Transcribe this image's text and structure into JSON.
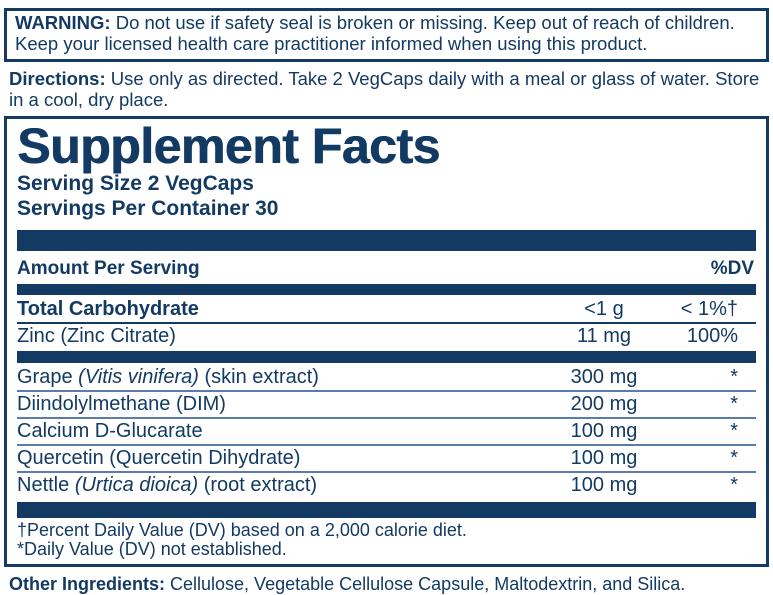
{
  "colors": {
    "navy": "#133A63",
    "light_rule": "#5B7CA8",
    "background": "#FFFFFF"
  },
  "warning": {
    "label": "WARNING:",
    "text": " Do not use if safety seal is broken or missing. Keep out of reach of children. Keep your licensed health care practitioner informed when using this product."
  },
  "directions": {
    "label": "Directions:",
    "text": " Use only as directed. Take 2 VegCaps daily with a meal or glass of water. Store in a cool, dry place."
  },
  "panel": {
    "title": "Supplement Facts",
    "serving_size": "Serving Size 2 VegCaps",
    "servings_per_container": "Servings Per Container 30",
    "header": {
      "amount": "Amount Per Serving",
      "dv": "%DV"
    },
    "nutrient_rows": [
      {
        "name": "Total Carbohydrate",
        "amount": "<1 g",
        "dv": "< 1%†"
      },
      {
        "name": "Zinc (Zinc Citrate)",
        "amount": "11 mg",
        "dv": "100%"
      }
    ],
    "ingredient_rows": [
      {
        "name_pre": "Grape ",
        "name_latin": "(Vitis vinifera)",
        "name_post": " (skin extract)",
        "amount": "300 mg",
        "dv": "*"
      },
      {
        "name_pre": "Diindolylmethane (DIM)",
        "name_latin": "",
        "name_post": "",
        "amount": "200 mg",
        "dv": "*"
      },
      {
        "name_pre": "Calcium D-Glucarate",
        "name_latin": "",
        "name_post": "",
        "amount": "100 mg",
        "dv": "*"
      },
      {
        "name_pre": "Quercetin (Quercetin Dihydrate)",
        "name_latin": "",
        "name_post": "",
        "amount": "100 mg",
        "dv": "*"
      },
      {
        "name_pre": "Nettle ",
        "name_latin": "(Urtica dioica)",
        "name_post": " (root extract)",
        "amount": "100 mg",
        "dv": "*"
      }
    ],
    "footnotes": [
      "†Percent Daily Value (DV) based on a 2,000 calorie diet.",
      "*Daily Value (DV) not established."
    ]
  },
  "other_ingredients": {
    "label": "Other Ingredients:",
    "text": " Cellulose, Vegetable Cellulose Capsule, Maltodextrin, and Silica."
  }
}
